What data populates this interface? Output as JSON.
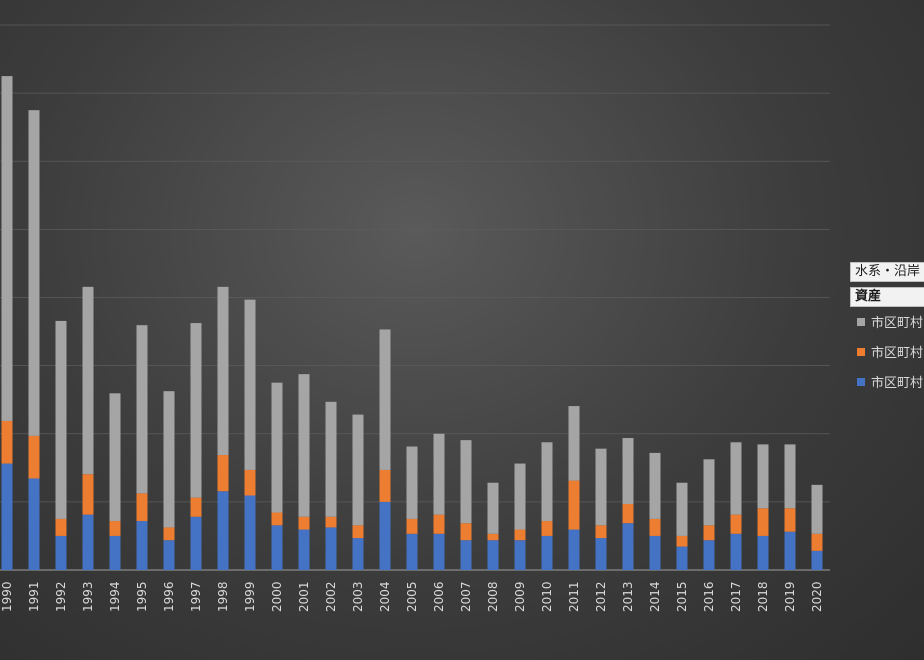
{
  "chart_data": {
    "type": "bar",
    "stacked": true,
    "categories": [
      "1990",
      "1991",
      "1992",
      "1993",
      "1994",
      "1995",
      "1996",
      "1997",
      "1998",
      "1999",
      "2000",
      "2001",
      "2002",
      "2003",
      "2004",
      "2005",
      "2006",
      "2007",
      "2008",
      "2009",
      "2010",
      "2011",
      "2012",
      "2013",
      "2014",
      "2015",
      "2016",
      "2017",
      "2018",
      "2019",
      "2020"
    ],
    "series": [
      {
        "name": "市区町村",
        "color": "#4472c4",
        "values": [
          50,
          43,
          16,
          26,
          16,
          23,
          14,
          25,
          37,
          35,
          21,
          19,
          20,
          15,
          32,
          17,
          17,
          14,
          14,
          14,
          16,
          19,
          15,
          22,
          16,
          11,
          14,
          17,
          16,
          18,
          9
        ]
      },
      {
        "name": "市区町村",
        "color": "#ed7d31",
        "values": [
          20,
          20,
          8,
          19,
          7,
          13,
          6,
          9,
          17,
          12,
          6,
          6,
          5,
          6,
          15,
          7,
          9,
          8,
          3,
          5,
          7,
          23,
          6,
          9,
          8,
          5,
          7,
          9,
          13,
          11,
          8
        ]
      },
      {
        "name": "市区町村",
        "color": "#a5a5a5",
        "values": [
          162,
          153,
          93,
          88,
          60,
          79,
          64,
          82,
          79,
          80,
          61,
          67,
          54,
          52,
          66,
          34,
          38,
          39,
          24,
          31,
          37,
          35,
          36,
          31,
          31,
          25,
          31,
          34,
          30,
          30,
          23
        ]
      }
    ],
    "ylim": [
      0,
      256
    ],
    "grid": true,
    "legend": "right",
    "filters": [
      "水系・沿岸",
      "資産"
    ]
  }
}
